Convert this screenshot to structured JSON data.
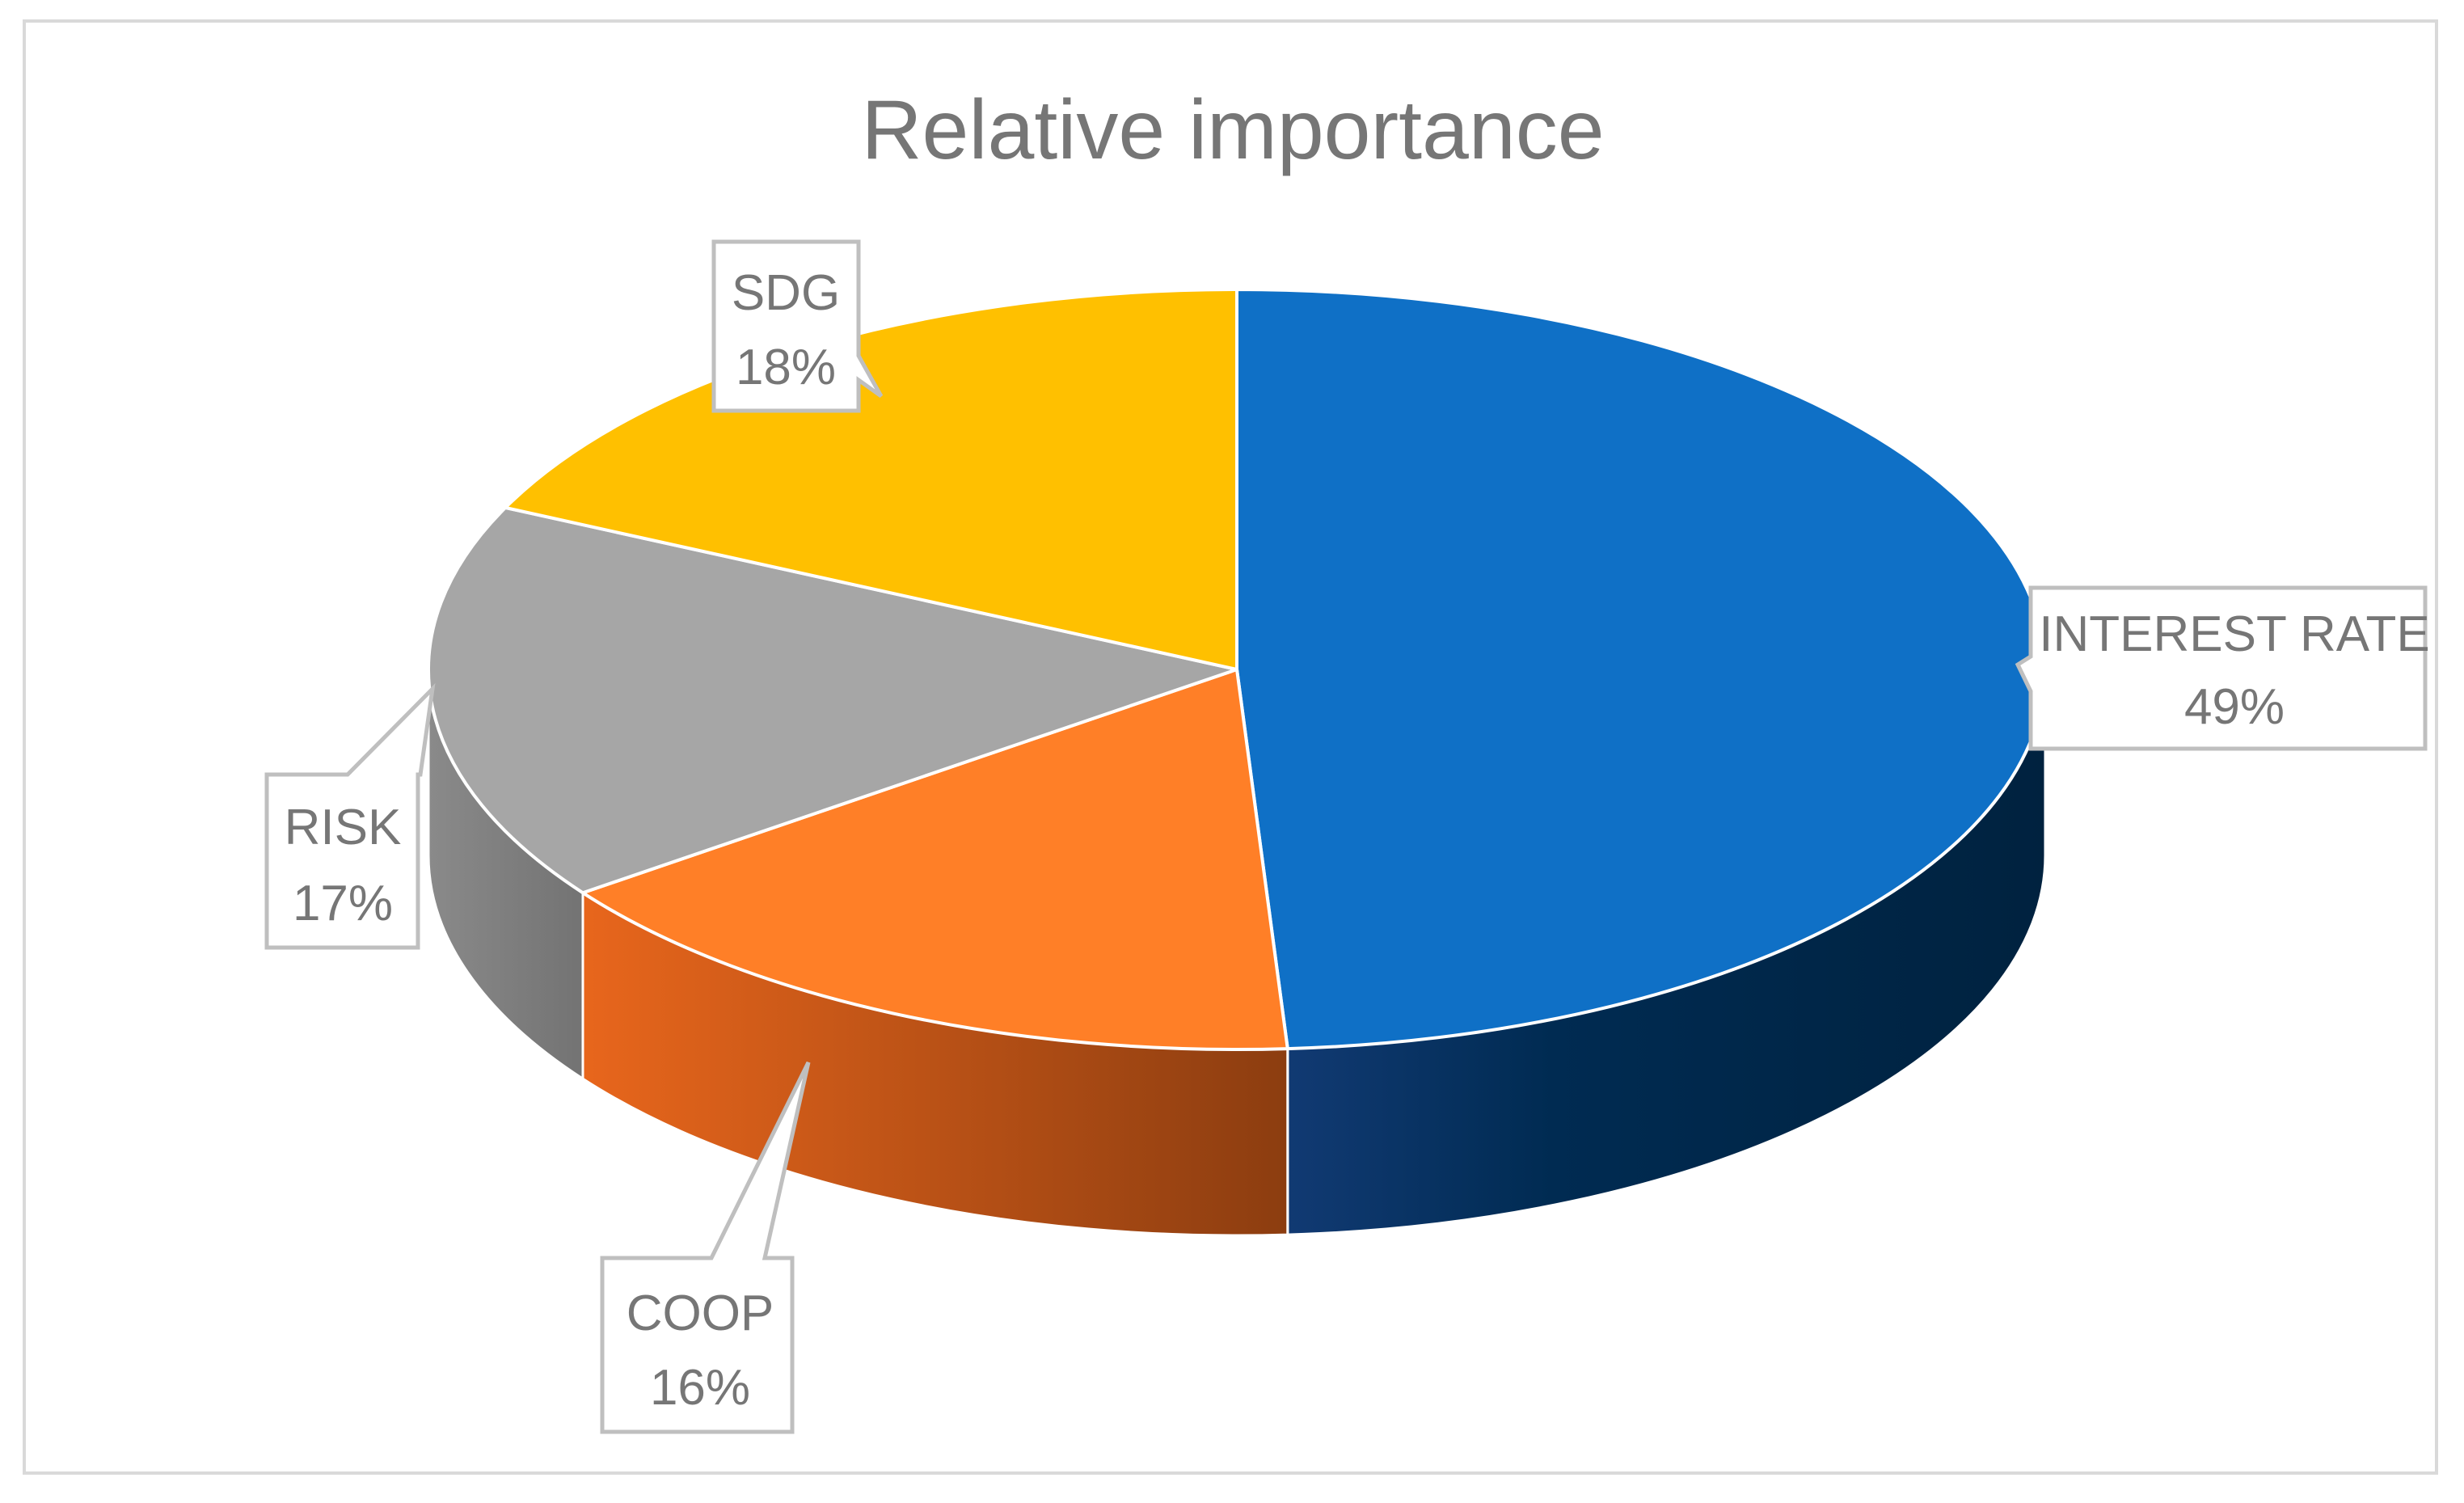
{
  "chart_data": {
    "type": "pie",
    "title": "Relative importance",
    "categories": [
      "INTEREST RATE",
      "COOP",
      "RISK",
      "SDG"
    ],
    "values": [
      49,
      16,
      17,
      18
    ],
    "labels": [
      {
        "name": "INTEREST RATE",
        "percent": "49%"
      },
      {
        "name": "COOP",
        "percent": "16%"
      },
      {
        "name": "RISK",
        "percent": "17%"
      },
      {
        "name": "SDG",
        "percent": "18%"
      }
    ],
    "colors": {
      "INTEREST RATE": "#0F70C6",
      "COOP": "#FF7F27",
      "RISK": "#A6A6A6",
      "SDG": "#FFC000"
    },
    "side_colors": {
      "INTEREST RATE": "#002B52",
      "COOP": "#C0551A",
      "RISK": "#7F7F7F",
      "SDG": "#C09000"
    },
    "style": "3d-pie",
    "legend": "none",
    "data_labels": "callouts"
  }
}
